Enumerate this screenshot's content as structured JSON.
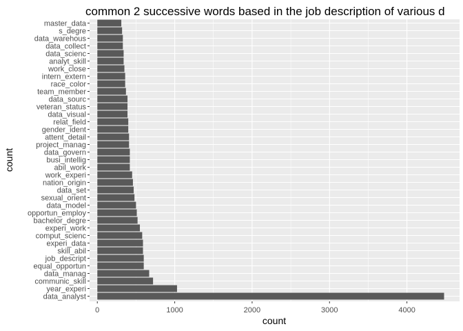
{
  "chart_data": {
    "type": "bar",
    "orientation": "horizontal",
    "title": "common 2 successive words based in the job description of various d",
    "xlabel": "count",
    "ylabel": "count",
    "xlim": [
      -100,
      4680
    ],
    "xticks": [
      0,
      1000,
      2000,
      3000,
      4000
    ],
    "xtick_labels": [
      "0",
      "1000",
      "2000",
      "3000",
      "4000"
    ],
    "grid": true,
    "background": "#ebebeb",
    "gridline_color": "#ffffff",
    "bar_color": "#595959",
    "categories": [
      "data_analyst",
      "year_experi",
      "communic_skill",
      "data_manag",
      "equal_opportun",
      "job_descript",
      "skill_abil",
      "experi_data",
      "comput_scienc",
      "experi_work",
      "bachelor_degre",
      "opportun_employ",
      "data_model",
      "sexual_orient",
      "data_set",
      "nation_origin",
      "work_experi",
      "abil_work",
      "busi_intellig",
      "data_govern",
      "project_manag",
      "attent_detail",
      "gender_ident",
      "relat_field",
      "data_visual",
      "veteran_status",
      "data_sourc",
      "team_member",
      "race_color",
      "intern_extern",
      "work_close",
      "analyt_skill",
      "data_scienc",
      "data_collect",
      "data_warehous",
      "s_degre",
      "master_data"
    ],
    "values": [
      4480,
      1030,
      720,
      670,
      600,
      600,
      590,
      590,
      580,
      550,
      520,
      510,
      500,
      480,
      470,
      460,
      450,
      420,
      420,
      420,
      410,
      410,
      400,
      400,
      390,
      390,
      390,
      370,
      360,
      360,
      350,
      340,
      340,
      330,
      330,
      320,
      310
    ]
  }
}
